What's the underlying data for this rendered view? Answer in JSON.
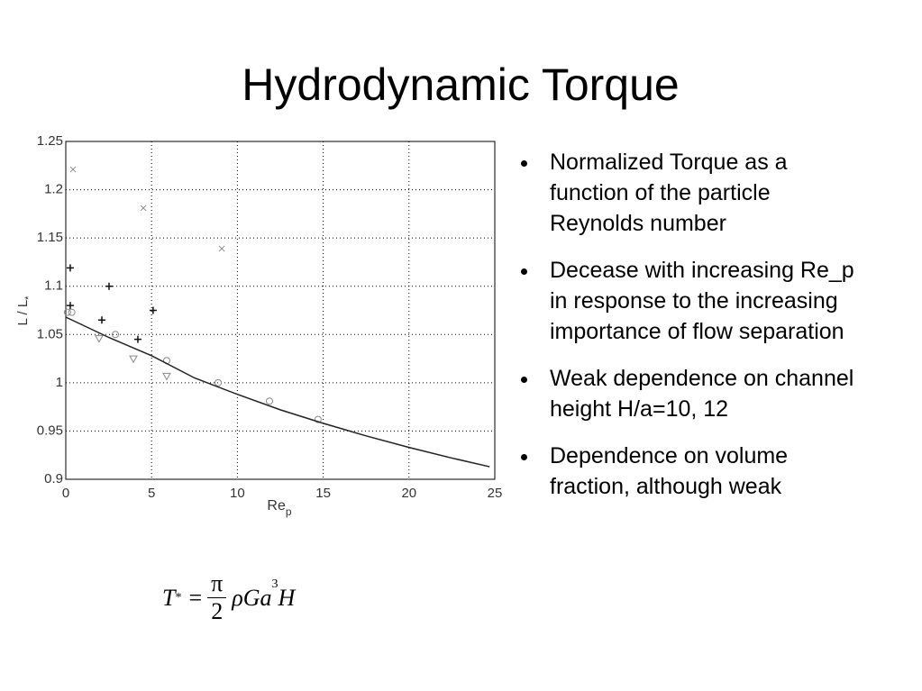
{
  "slide": {
    "title": "Hydrodynamic Torque",
    "bullets": [
      "Normalized Torque as a function of the particle Reynolds number",
      "Decease with increasing Re_p in response to the increasing importance of flow separation",
      "Weak dependence on channel height H/a=10, 12",
      "Dependence on volume fraction, although weak"
    ],
    "formula": {
      "lhs": "T",
      "lhs_sub": "*",
      "eq": "=",
      "num": "π",
      "den": "2",
      "rhs": "ρGa",
      "sup": "3",
      "tail": "H"
    }
  },
  "chart_data": {
    "type": "scatter",
    "xlabel": "Re",
    "xlabel_sub": "p",
    "ylabel": "L / L",
    "ylabel_sub": "*",
    "xlim": [
      0,
      25
    ],
    "xticks": [
      0,
      5,
      10,
      15,
      20,
      25
    ],
    "ylim": [
      0.9,
      1.25
    ],
    "yticks": [
      0.9,
      0.95,
      1,
      1.05,
      1.1,
      1.15,
      1.2,
      1.25
    ],
    "grid": true,
    "series": [
      {
        "marker": "x",
        "color": "#888888",
        "x": [
          0.42,
          4.52,
          9.09
        ],
        "values": [
          1.221,
          1.181,
          1.139
        ]
      },
      {
        "marker": "+",
        "color": "#111111",
        "x": [
          0.26,
          0.26,
          2.52,
          2.1,
          5.09,
          4.2
        ],
        "values": [
          1.119,
          1.08,
          1.1,
          1.065,
          1.075,
          1.045
        ]
      },
      {
        "marker": "o",
        "color": "#888888",
        "x": [
          0.1,
          0.35,
          2.89,
          5.88,
          8.88,
          11.87,
          14.7
        ],
        "values": [
          1.073,
          1.073,
          1.05,
          1.023,
          1.0,
          0.981,
          0.962
        ]
      },
      {
        "marker": "v",
        "color": "#888888",
        "x": [
          1.94,
          3.94,
          5.88
        ],
        "values": [
          1.046,
          1.025,
          1.007
        ]
      },
      {
        "marker": "line",
        "color": "#222222",
        "x": [
          0,
          2.5,
          5,
          7.5,
          10,
          12.5,
          15,
          17.5,
          20,
          22.5,
          24.7
        ],
        "values": [
          1.068,
          1.047,
          1.028,
          1.005,
          0.988,
          0.972,
          0.958,
          0.945,
          0.933,
          0.922,
          0.913
        ]
      }
    ]
  }
}
